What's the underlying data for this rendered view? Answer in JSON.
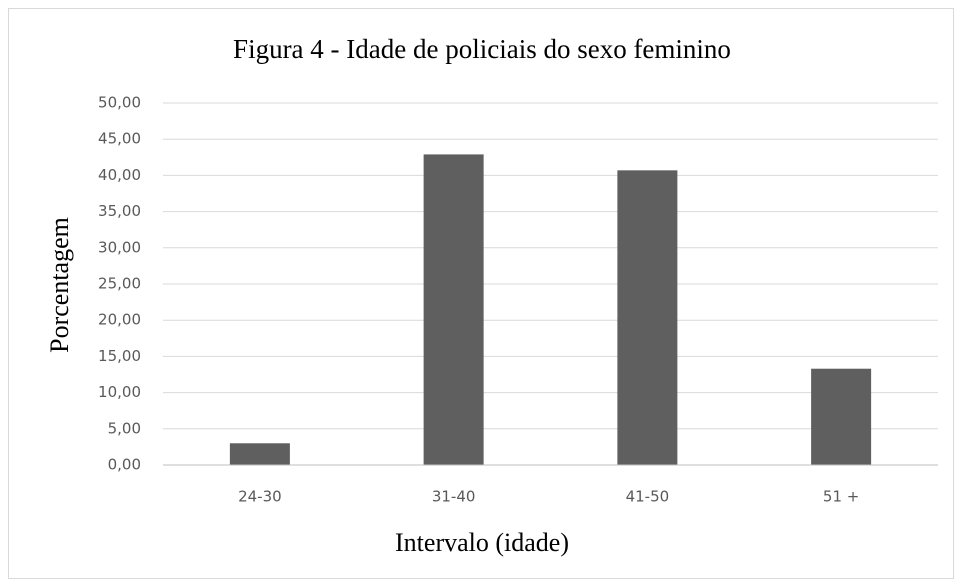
{
  "chart_data": {
    "type": "bar",
    "title": "Figura 4 - Idade de policiais do sexo feminino",
    "x_label": "Intervalo (idade)",
    "y_label": "Porcentagem",
    "categories": [
      "24-30",
      "31-40",
      "41-50",
      "51 +"
    ],
    "values": [
      3.0,
      42.9,
      40.7,
      13.3
    ],
    "color": "#5f5f5f",
    "ylim": [
      0,
      50
    ],
    "yticks": [
      {
        "value": 0,
        "label": "0,00"
      },
      {
        "value": 5,
        "label": "5,00"
      },
      {
        "value": 10,
        "label": "10,00"
      },
      {
        "value": 15,
        "label": "15,00"
      },
      {
        "value": 20,
        "label": "20,00"
      },
      {
        "value": 25,
        "label": "25,00"
      },
      {
        "value": 30,
        "label": "30,00"
      },
      {
        "value": 35,
        "label": "35,00"
      },
      {
        "value": 40,
        "label": "40,00"
      },
      {
        "value": 45,
        "label": "45,00"
      },
      {
        "value": 50,
        "label": "50,00"
      }
    ],
    "grid": true
  }
}
